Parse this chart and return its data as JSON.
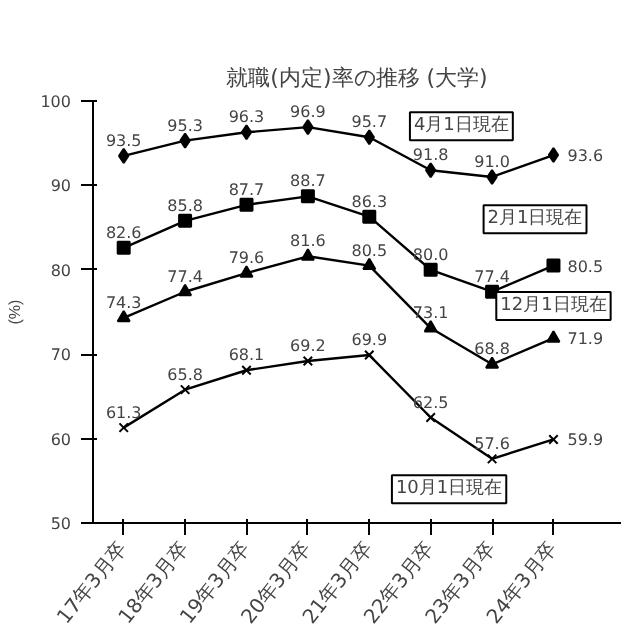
{
  "chart_data": {
    "type": "line",
    "title": "就職(内定)率の推移 (大学)",
    "ylabel": "(%)",
    "categories": [
      "17年3月卒",
      "18年3月卒",
      "19年3月卒",
      "20年3月卒",
      "21年3月卒",
      "22年3月卒",
      "23年3月卒",
      "24年3月卒"
    ],
    "series": [
      {
        "name": "4月1日現在",
        "color": "#000000",
        "marker": "diamond",
        "values": [
          93.5,
          95.3,
          96.3,
          96.9,
          95.7,
          91.8,
          91.0,
          93.6
        ],
        "value_labels": [
          "93.5",
          "95.3",
          "96.3",
          "96.9",
          "95.7",
          "91.8",
          "91.0",
          "93.6"
        ]
      },
      {
        "name": "2月1日現在",
        "color": "#000000",
        "marker": "square",
        "values": [
          82.6,
          85.8,
          87.7,
          88.7,
          86.3,
          80.0,
          77.4,
          80.5
        ],
        "value_labels": [
          "82.6",
          "85.8",
          "87.7",
          "88.7",
          "86.3",
          "80.0",
          "77.4",
          "80.5"
        ]
      },
      {
        "name": "12月1日現在",
        "color": "#000000",
        "marker": "triangle",
        "values": [
          74.3,
          77.4,
          79.6,
          81.6,
          80.5,
          73.1,
          68.8,
          71.9
        ]
      },
      {
        "name": "10月1日現在",
        "color": "#000000",
        "marker": "cross",
        "values": [
          61.3,
          65.8,
          68.1,
          69.2,
          69.9,
          62.5,
          57.6,
          59.9
        ]
      }
    ],
    "ylim": [
      50,
      100
    ],
    "yticks": [
      50,
      60,
      70,
      80,
      90,
      100
    ],
    "grid": false,
    "legend": false,
    "data_labels": true
  }
}
